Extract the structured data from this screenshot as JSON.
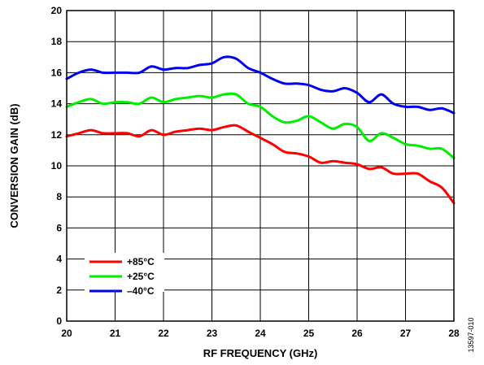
{
  "figure_id": "13597-010",
  "chart_data": {
    "type": "line",
    "xlabel": "RF FREQUENCY (GHz)",
    "ylabel": "CONVERSION GAIN (dB)",
    "xlim": [
      20,
      28
    ],
    "ylim": [
      0,
      20
    ],
    "x_ticks": [
      "20",
      "21",
      "22",
      "23",
      "24",
      "25",
      "26",
      "27",
      "28"
    ],
    "y_ticks": [
      "0",
      "2",
      "4",
      "6",
      "8",
      "10",
      "12",
      "14",
      "16",
      "18",
      "20"
    ],
    "grid": true,
    "legend_position": "bottom-left",
    "series": [
      {
        "name": "+85°C",
        "color": "#ff0000",
        "x": [
          20.0,
          20.25,
          20.5,
          20.75,
          21.0,
          21.25,
          21.5,
          21.75,
          22.0,
          22.25,
          22.5,
          22.75,
          23.0,
          23.25,
          23.5,
          23.75,
          24.0,
          24.25,
          24.5,
          24.75,
          25.0,
          25.25,
          25.5,
          25.75,
          26.0,
          26.25,
          26.5,
          26.75,
          27.0,
          27.25,
          27.5,
          27.75,
          28.0
        ],
        "y": [
          11.9,
          12.1,
          12.3,
          12.1,
          12.1,
          12.1,
          11.9,
          12.3,
          12.0,
          12.2,
          12.3,
          12.4,
          12.3,
          12.5,
          12.6,
          12.2,
          11.8,
          11.4,
          10.9,
          10.8,
          10.6,
          10.2,
          10.3,
          10.2,
          10.1,
          9.8,
          9.9,
          9.5,
          9.5,
          9.5,
          9.0,
          8.6,
          7.6
        ]
      },
      {
        "name": "+25°C",
        "color": "#00ee00",
        "x": [
          20.0,
          20.25,
          20.5,
          20.75,
          21.0,
          21.25,
          21.5,
          21.75,
          22.0,
          22.25,
          22.5,
          22.75,
          23.0,
          23.25,
          23.5,
          23.75,
          24.0,
          24.25,
          24.5,
          24.75,
          25.0,
          25.25,
          25.5,
          25.75,
          26.0,
          26.25,
          26.5,
          26.75,
          27.0,
          27.25,
          27.5,
          27.75,
          28.0
        ],
        "y": [
          13.8,
          14.1,
          14.3,
          14.0,
          14.1,
          14.1,
          14.0,
          14.4,
          14.1,
          14.3,
          14.4,
          14.5,
          14.4,
          14.6,
          14.6,
          14.0,
          13.8,
          13.2,
          12.8,
          12.9,
          13.2,
          12.8,
          12.4,
          12.7,
          12.5,
          11.6,
          12.1,
          11.8,
          11.4,
          11.3,
          11.1,
          11.1,
          10.5
        ]
      },
      {
        "name": "–40°C",
        "color": "#0000ee",
        "x": [
          20.0,
          20.25,
          20.5,
          20.75,
          21.0,
          21.25,
          21.5,
          21.75,
          22.0,
          22.25,
          22.5,
          22.75,
          23.0,
          23.25,
          23.5,
          23.75,
          24.0,
          24.25,
          24.5,
          24.75,
          25.0,
          25.25,
          25.5,
          25.75,
          26.0,
          26.25,
          26.5,
          26.75,
          27.0,
          27.25,
          27.5,
          27.75,
          28.0
        ],
        "y": [
          15.6,
          16.0,
          16.2,
          16.0,
          16.0,
          16.0,
          16.0,
          16.4,
          16.2,
          16.3,
          16.3,
          16.5,
          16.6,
          17.0,
          16.9,
          16.3,
          16.0,
          15.6,
          15.3,
          15.3,
          15.2,
          14.9,
          14.8,
          15.0,
          14.7,
          14.1,
          14.6,
          14.0,
          13.8,
          13.8,
          13.6,
          13.7,
          13.4
        ]
      }
    ]
  }
}
